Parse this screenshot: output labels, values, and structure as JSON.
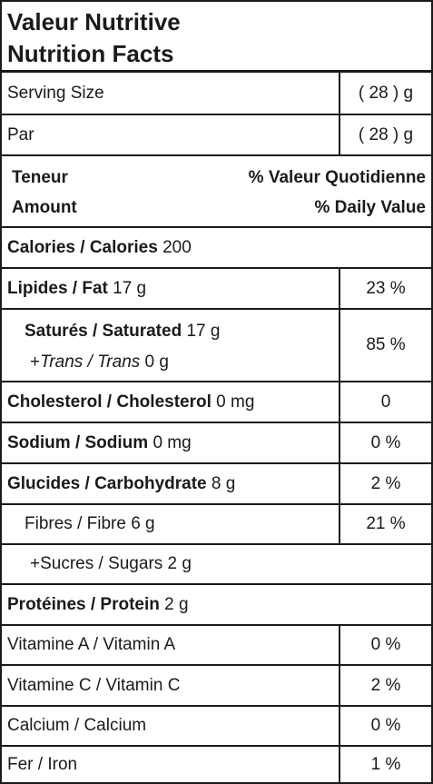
{
  "title": {
    "fr": "Valeur Nutritive",
    "en": "Nutrition Facts"
  },
  "serving_size": {
    "label": "Serving Size",
    "value": "( 28 ) g"
  },
  "par": {
    "label": "Par",
    "value": "( 28 ) g"
  },
  "header": {
    "amount_fr": "Teneur",
    "amount_en": "Amount",
    "dv_fr": "% Valeur Quotidienne",
    "dv_en": "% Daily Value"
  },
  "calories": {
    "label": "Calories / Calories",
    "amount": "200"
  },
  "fat": {
    "label": "Lipides / Fat",
    "amount": "17 g",
    "dv": "23 %"
  },
  "saturated": {
    "label": "Saturés / Saturated",
    "amount": "17 g",
    "trans_prefix": "+",
    "trans_label": "Trans / Trans",
    "trans_amount": "0 g",
    "dv": "85 %"
  },
  "cholesterol": {
    "label": "Cholesterol / Cholesterol",
    "amount": "0 mg",
    "dv": "0"
  },
  "sodium": {
    "label": "Sodium / Sodium",
    "amount": "0 mg",
    "dv": "0 %"
  },
  "carbohydrate": {
    "label": "Glucides / Carbohydrate",
    "amount": "8 g",
    "dv": "2 %"
  },
  "fibre": {
    "label": "Fibres / Fibre 6 g",
    "dv": "21 %"
  },
  "sugars": {
    "label": "+Sucres / Sugars 2 g"
  },
  "protein": {
    "label": "Protéines / Protein",
    "amount": "2 g"
  },
  "vitamin_a": {
    "label": "Vitamine A / Vitamin A",
    "dv": "0 %"
  },
  "vitamin_c": {
    "label": "Vitamine C / Vitamin C",
    "dv": "2 %"
  },
  "calcium": {
    "label": "Calcium / Calcium",
    "dv": "0 %"
  },
  "iron": {
    "label": "Fer / Iron",
    "dv": "1 %"
  }
}
